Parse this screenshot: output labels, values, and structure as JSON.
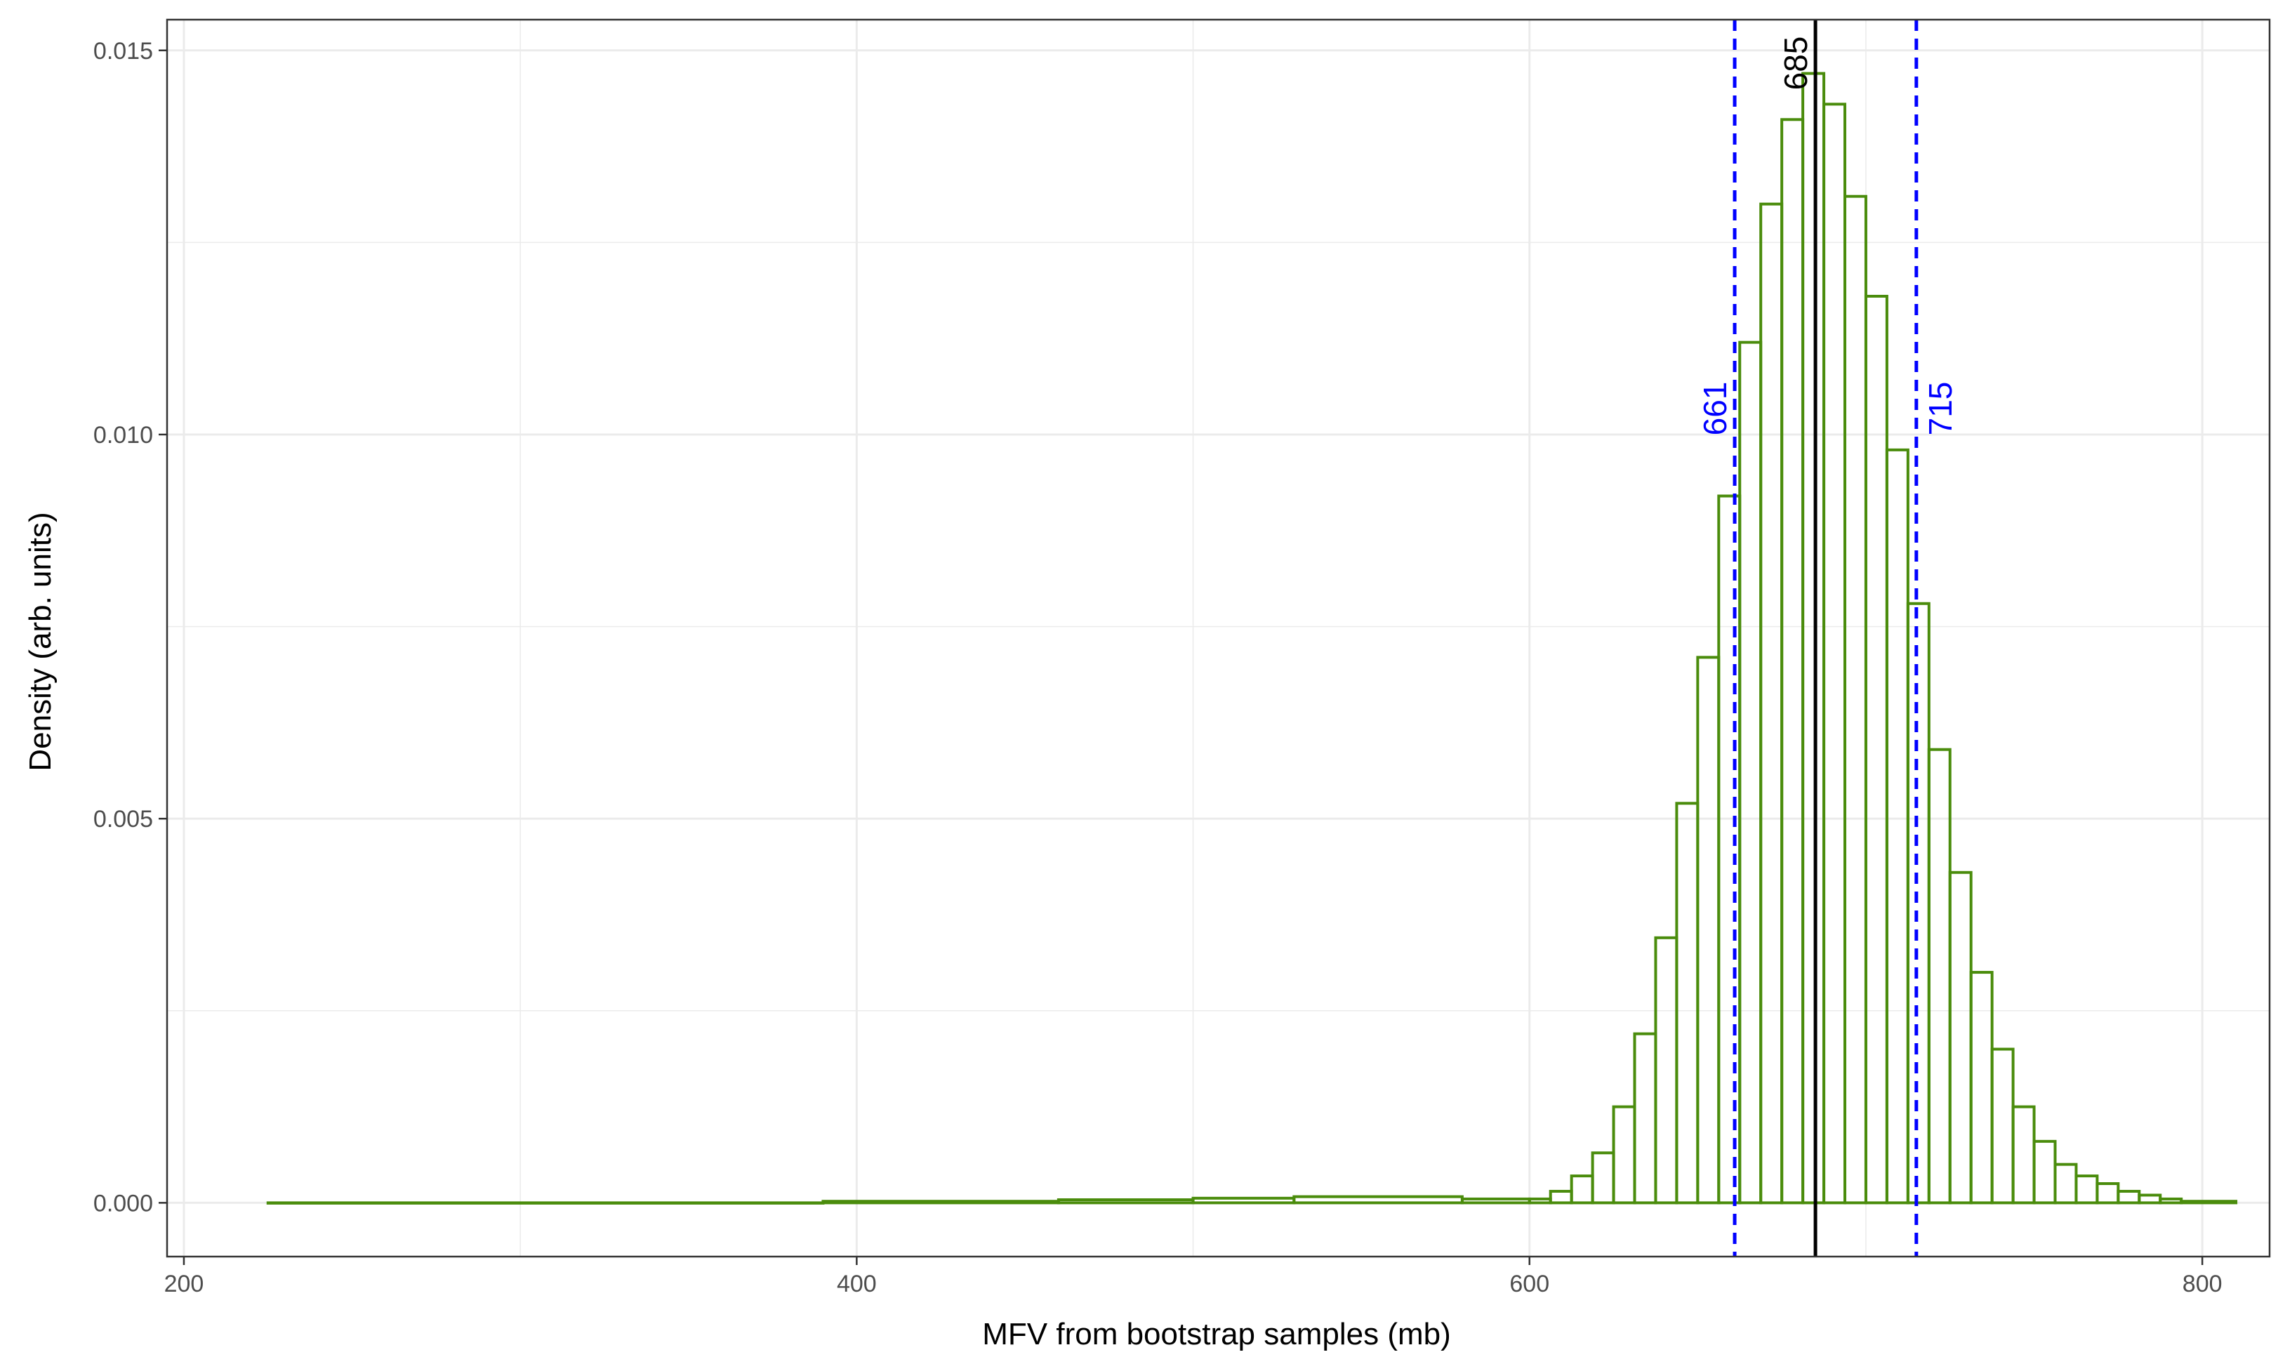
{
  "chart_data": {
    "type": "bar",
    "subtype": "histogram",
    "xlabel": "MFV from bootstrap samples (mb)",
    "ylabel": "Density (arb. units)",
    "xlim": [
      195,
      820
    ],
    "ylim": [
      -0.0007,
      0.0154
    ],
    "x_ticks": [
      200,
      400,
      600,
      800
    ],
    "x_tick_labels": [
      "200",
      "400",
      "600",
      "800"
    ],
    "y_ticks": [
      0.0,
      0.005,
      0.01,
      0.015
    ],
    "y_tick_labels": [
      "0.000",
      "0.005",
      "0.010",
      "0.015"
    ],
    "grid": true,
    "bin_width": 6.25,
    "bar_color": "#4a8c0c",
    "bins": [
      {
        "x0": 225,
        "x1": 390,
        "y": 0.0
      },
      {
        "x0": 390,
        "x1": 460,
        "y": 2e-05
      },
      {
        "x0": 460,
        "x1": 500,
        "y": 4e-05
      },
      {
        "x0": 500,
        "x1": 530,
        "y": 6e-05
      },
      {
        "x0": 530,
        "x1": 580,
        "y": 8e-05
      },
      {
        "x0": 580,
        "x1": 600,
        "y": 5e-05
      },
      {
        "x0": 600,
        "x1": 606.25,
        "y": 5e-05
      },
      {
        "x0": 606.25,
        "x1": 612.5,
        "y": 0.00015
      },
      {
        "x0": 612.5,
        "x1": 618.75,
        "y": 0.00035
      },
      {
        "x0": 618.75,
        "x1": 625,
        "y": 0.00065
      },
      {
        "x0": 625,
        "x1": 631.25,
        "y": 0.00125
      },
      {
        "x0": 631.25,
        "x1": 637.5,
        "y": 0.0022
      },
      {
        "x0": 637.5,
        "x1": 643.75,
        "y": 0.00345
      },
      {
        "x0": 643.75,
        "x1": 650,
        "y": 0.0052
      },
      {
        "x0": 650,
        "x1": 656.25,
        "y": 0.0071
      },
      {
        "x0": 656.25,
        "x1": 662.5,
        "y": 0.0092
      },
      {
        "x0": 662.5,
        "x1": 668.75,
        "y": 0.0112
      },
      {
        "x0": 668.75,
        "x1": 675,
        "y": 0.013
      },
      {
        "x0": 675,
        "x1": 681.25,
        "y": 0.0141
      },
      {
        "x0": 681.25,
        "x1": 687.5,
        "y": 0.0147
      },
      {
        "x0": 687.5,
        "x1": 693.75,
        "y": 0.0143
      },
      {
        "x0": 693.75,
        "x1": 700,
        "y": 0.0131
      },
      {
        "x0": 700,
        "x1": 706.25,
        "y": 0.0118
      },
      {
        "x0": 706.25,
        "x1": 712.5,
        "y": 0.0098
      },
      {
        "x0": 712.5,
        "x1": 718.75,
        "y": 0.0078
      },
      {
        "x0": 718.75,
        "x1": 725,
        "y": 0.0059
      },
      {
        "x0": 725,
        "x1": 731.25,
        "y": 0.0043
      },
      {
        "x0": 731.25,
        "x1": 737.5,
        "y": 0.003
      },
      {
        "x0": 737.5,
        "x1": 743.75,
        "y": 0.002
      },
      {
        "x0": 743.75,
        "x1": 750,
        "y": 0.00125
      },
      {
        "x0": 750,
        "x1": 756.25,
        "y": 0.0008
      },
      {
        "x0": 756.25,
        "x1": 762.5,
        "y": 0.0005
      },
      {
        "x0": 762.5,
        "x1": 768.75,
        "y": 0.00035
      },
      {
        "x0": 768.75,
        "x1": 775,
        "y": 0.00025
      },
      {
        "x0": 775,
        "x1": 781.25,
        "y": 0.00015
      },
      {
        "x0": 781.25,
        "x1": 787.5,
        "y": 0.0001
      },
      {
        "x0": 787.5,
        "x1": 793.75,
        "y": 5e-05
      },
      {
        "x0": 793.75,
        "x1": 810,
        "y": 2e-05
      }
    ],
    "vlines": [
      {
        "x": 685,
        "label": "685",
        "style": "solid",
        "color": "#000000"
      },
      {
        "x": 661,
        "label": "661",
        "style": "dashed",
        "color": "#0000ff"
      },
      {
        "x": 715,
        "label": "715",
        "style": "dashed",
        "color": "#0000ff"
      }
    ]
  }
}
